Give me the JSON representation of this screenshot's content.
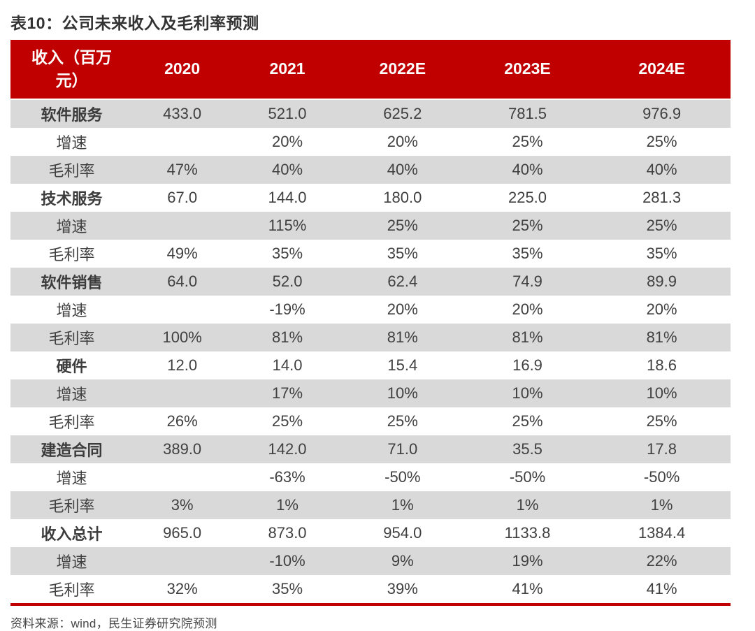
{
  "title": "表10：公司未来收入及毛利率预测",
  "source": "资料来源：wind，民生证券研究院预测",
  "colors": {
    "header_bg": "#C00000",
    "header_text": "#FFFFFF",
    "row_alt_bg": "#D9D9D9",
    "row_bg": "#FFFFFF",
    "body_text": "#404040",
    "bottom_rule": "#C00000"
  },
  "chart_data": {
    "type": "table",
    "title": "表10：公司未来收入及毛利率预测",
    "columns": [
      "收入（百万元）",
      "2020",
      "2021",
      "2022E",
      "2023E",
      "2024E"
    ],
    "rows": [
      {
        "label": "软件服务",
        "bold": true,
        "values": [
          "433.0",
          "521.0",
          "625.2",
          "781.5",
          "976.9"
        ]
      },
      {
        "label": "增速",
        "bold": false,
        "values": [
          "",
          "20%",
          "20%",
          "25%",
          "25%"
        ]
      },
      {
        "label": "毛利率",
        "bold": false,
        "values": [
          "47%",
          "40%",
          "40%",
          "40%",
          "40%"
        ]
      },
      {
        "label": "技术服务",
        "bold": true,
        "values": [
          "67.0",
          "144.0",
          "180.0",
          "225.0",
          "281.3"
        ]
      },
      {
        "label": "增速",
        "bold": false,
        "values": [
          "",
          "115%",
          "25%",
          "25%",
          "25%"
        ]
      },
      {
        "label": "毛利率",
        "bold": false,
        "values": [
          "49%",
          "35%",
          "35%",
          "35%",
          "35%"
        ]
      },
      {
        "label": "软件销售",
        "bold": true,
        "values": [
          "64.0",
          "52.0",
          "62.4",
          "74.9",
          "89.9"
        ]
      },
      {
        "label": "增速",
        "bold": false,
        "values": [
          "",
          "-19%",
          "20%",
          "20%",
          "20%"
        ]
      },
      {
        "label": "毛利率",
        "bold": false,
        "values": [
          "100%",
          "81%",
          "81%",
          "81%",
          "81%"
        ]
      },
      {
        "label": "硬件",
        "bold": true,
        "values": [
          "12.0",
          "14.0",
          "15.4",
          "16.9",
          "18.6"
        ]
      },
      {
        "label": "增速",
        "bold": false,
        "values": [
          "",
          "17%",
          "10%",
          "10%",
          "10%"
        ]
      },
      {
        "label": "毛利率",
        "bold": false,
        "values": [
          "26%",
          "25%",
          "25%",
          "25%",
          "25%"
        ]
      },
      {
        "label": "建造合同",
        "bold": true,
        "values": [
          "389.0",
          "142.0",
          "71.0",
          "35.5",
          "17.8"
        ]
      },
      {
        "label": "增速",
        "bold": false,
        "values": [
          "",
          "-63%",
          "-50%",
          "-50%",
          "-50%"
        ]
      },
      {
        "label": "毛利率",
        "bold": false,
        "values": [
          "3%",
          "1%",
          "1%",
          "1%",
          "1%"
        ]
      },
      {
        "label": "收入总计",
        "bold": true,
        "values": [
          "965.0",
          "873.0",
          "954.0",
          "1133.8",
          "1384.4"
        ]
      },
      {
        "label": "增速",
        "bold": false,
        "values": [
          "",
          "-10%",
          "9%",
          "19%",
          "22%"
        ]
      },
      {
        "label": "毛利率",
        "bold": false,
        "values": [
          "32%",
          "35%",
          "39%",
          "41%",
          "41%"
        ]
      }
    ]
  }
}
